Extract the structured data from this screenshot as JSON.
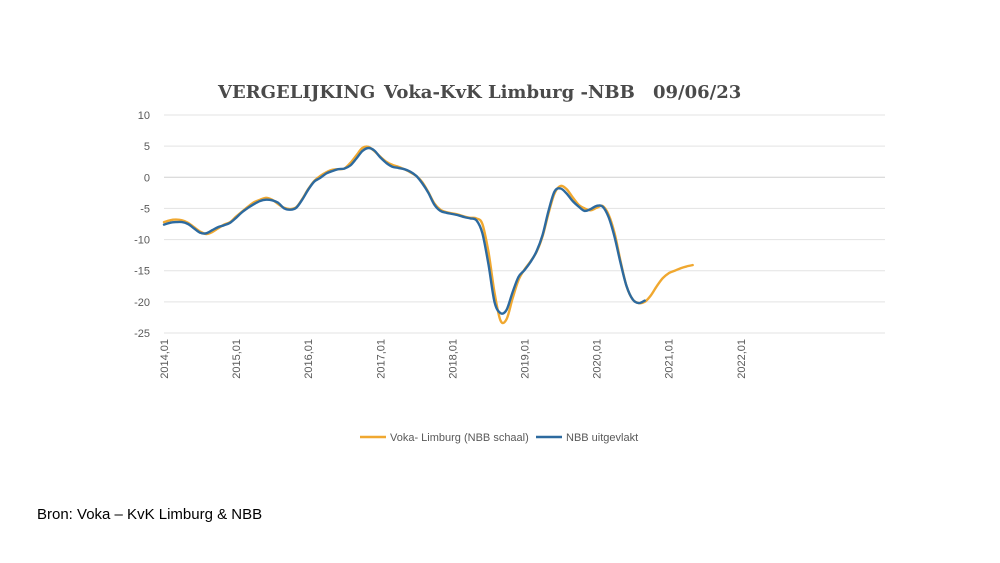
{
  "chart_data": {
    "type": "line",
    "title_parts": [
      "VERGELIJKING",
      "Voka-KvK Limburg -NBB",
      "09/06/23"
    ],
    "xlabel": "",
    "ylabel": "",
    "ylim": [
      -25,
      10
    ],
    "yticks": [
      10,
      5,
      0,
      -5,
      -10,
      -15,
      -20,
      -25
    ],
    "x_start": "2014,01",
    "n_months": 120,
    "xtick_labels": [
      {
        "month_index": 0,
        "label": "2014,01"
      },
      {
        "month_index": 12,
        "label": "2015,01"
      },
      {
        "month_index": 24,
        "label": "2016,01"
      },
      {
        "month_index": 36,
        "label": "2017,01"
      },
      {
        "month_index": 48,
        "label": "2018,01"
      },
      {
        "month_index": 60,
        "label": "2019,01"
      },
      {
        "month_index": 72,
        "label": "2020,01"
      },
      {
        "month_index": 84,
        "label": "2021,01"
      },
      {
        "month_index": 96,
        "label": "2022,01"
      }
    ],
    "grid": "horizontal",
    "legend_position": "bottom",
    "series": [
      {
        "name": "Voka- Limburg (NBB schaal)",
        "color": "#F0A830",
        "values": [
          -7.2,
          -6.9,
          -6.8,
          -6.9,
          -7.3,
          -8.0,
          -8.7,
          -9.1,
          -8.8,
          -8.2,
          -7.6,
          -7.2,
          -6.3,
          -5.5,
          -4.7,
          -4.0,
          -3.6,
          -3.3,
          -3.6,
          -4.3,
          -4.9,
          -5.1,
          -4.8,
          -3.5,
          -1.9,
          -0.6,
          0.2,
          0.8,
          1.2,
          1.3,
          1.4,
          2.3,
          3.5,
          4.7,
          4.9,
          4.2,
          3.3,
          2.5,
          2.0,
          1.7,
          1.3,
          0.8,
          0.2,
          -0.8,
          -2.4,
          -4.2,
          -5.2,
          -5.6,
          -5.8,
          -6.0,
          -6.3,
          -6.5,
          -6.6,
          -7.5,
          -12.0,
          -18.5,
          -23.0,
          -22.8,
          -19.5,
          -16.5,
          -14.8,
          -13.5,
          -12.0,
          -9.5,
          -5.8,
          -2.6,
          -1.4,
          -1.9,
          -3.2,
          -4.4,
          -5.0,
          -5.3,
          -4.9,
          -4.6,
          -6.0,
          -9.0,
          -13.5,
          -17.5,
          -19.6,
          -20.2,
          -20.0,
          -19.0,
          -17.5,
          -16.2,
          -15.4,
          -15.0,
          -14.6,
          -14.3,
          -14.1
        ]
      },
      {
        "name": "NBB  uitgevlakt",
        "color": "#2D6A9F",
        "values": [
          -7.6,
          -7.3,
          -7.2,
          -7.2,
          -7.5,
          -8.2,
          -8.9,
          -9.0,
          -8.5,
          -8.0,
          -7.7,
          -7.3,
          -6.5,
          -5.6,
          -4.9,
          -4.3,
          -3.8,
          -3.6,
          -3.7,
          -4.1,
          -5.0,
          -5.2,
          -4.9,
          -3.6,
          -2.0,
          -0.7,
          -0.1,
          0.6,
          1.0,
          1.3,
          1.4,
          1.9,
          3.0,
          4.2,
          4.7,
          4.3,
          3.2,
          2.3,
          1.7,
          1.5,
          1.3,
          0.9,
          0.2,
          -1.0,
          -2.5,
          -4.4,
          -5.4,
          -5.7,
          -5.9,
          -6.1,
          -6.4,
          -6.6,
          -6.9,
          -9.0,
          -14.0,
          -20.0,
          -21.8,
          -21.3,
          -18.5,
          -16.0,
          -14.9,
          -13.6,
          -11.9,
          -9.3,
          -5.4,
          -2.3,
          -1.8,
          -2.6,
          -3.8,
          -4.7,
          -5.4,
          -5.1,
          -4.6,
          -4.7,
          -6.4,
          -9.6,
          -13.8,
          -17.5,
          -19.6,
          -20.2,
          -19.8
        ]
      }
    ]
  },
  "source_text": "Bron:  Voka – KvK Limburg & NBB"
}
